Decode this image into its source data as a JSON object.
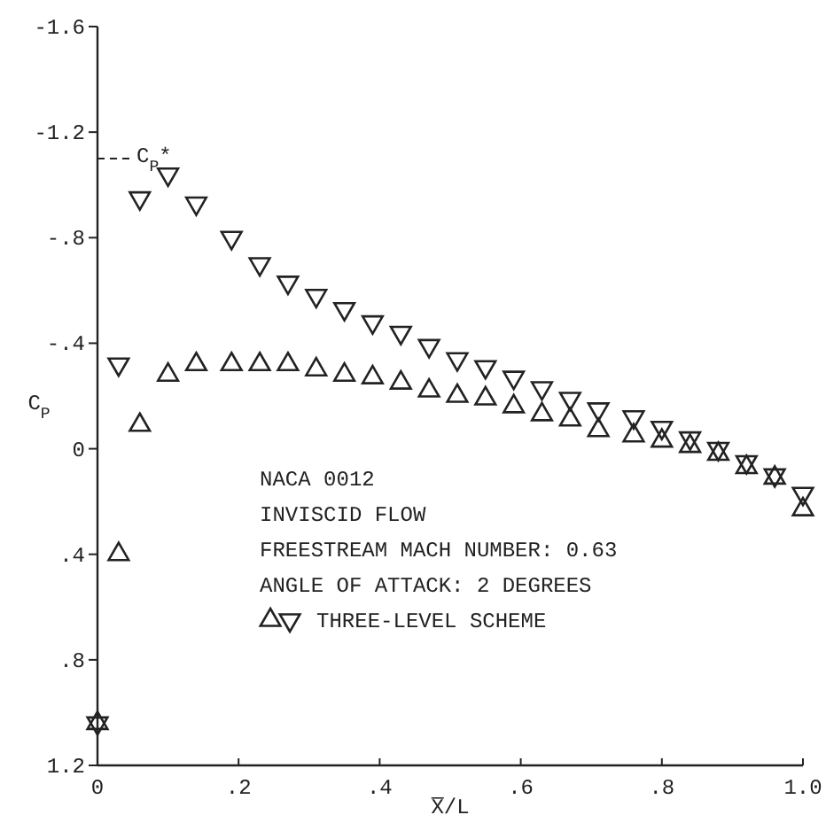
{
  "chart_data": {
    "type": "scatter",
    "xlabel": "X̅/L",
    "ylabel": "C$_{P}$",
    "xlim": [
      0,
      1.0
    ],
    "ylim": [
      1.2,
      -1.6
    ],
    "xticks": [
      0,
      {
        "value": 0.2,
        "label": ".2"
      },
      {
        "value": 0.4,
        "label": ".4"
      },
      {
        "value": 0.6,
        "label": ".6"
      },
      {
        "value": 0.8,
        "label": ".8"
      },
      {
        "value": 1.0,
        "label": "1.0"
      }
    ],
    "yticks": [
      -1.6,
      -1.2,
      {
        "value": -0.8,
        "label": "-.8"
      },
      {
        "value": -0.4,
        "label": "-.4"
      },
      0,
      {
        "value": 0.4,
        "label": ".4"
      },
      {
        "value": 0.8,
        "label": ".8"
      },
      1.2
    ],
    "grid": false,
    "legend": "bottom left",
    "series": [
      {
        "name": "THREE-LEVEL SCHEME",
        "color": "#222222",
        "marker": "triangle",
        "x": [
          0,
          0.03,
          0.06,
          0.1,
          0.14,
          0.19,
          0.23,
          0.27,
          0.31,
          0.35,
          0.39,
          0.43,
          0.47,
          0.51,
          0.55,
          0.59,
          0.63,
          0.67,
          0.71,
          0.76,
          0.8,
          0.84,
          0.88,
          0.92,
          0.96,
          1.0
        ],
        "values": [
          1.04,
          0.4,
          -0.09,
          -0.28,
          -0.32,
          -0.32,
          -0.32,
          -0.32,
          -0.3,
          -0.28,
          -0.27,
          -0.25,
          -0.22,
          -0.2,
          -0.19,
          -0.16,
          -0.13,
          -0.11,
          -0.07,
          -0.05,
          -0.03,
          -0.01,
          0.02,
          0.07,
          0.11,
          0.23
        ]
      },
      {
        "color": "#222222",
        "marker": "triangle-down",
        "x": [
          0,
          0.03,
          0.06,
          0.1,
          0.14,
          0.19,
          0.23,
          0.27,
          0.31,
          0.35,
          0.39,
          0.43,
          0.47,
          0.51,
          0.55,
          0.59,
          0.63,
          0.67,
          0.71,
          0.76,
          0.8,
          0.84,
          0.88,
          0.92,
          0.96,
          1.0
        ],
        "values": [
          1.04,
          -0.32,
          -0.95,
          -1.04,
          -0.93,
          -0.8,
          -0.7,
          -0.63,
          -0.58,
          -0.53,
          -0.48,
          -0.44,
          -0.39,
          -0.34,
          -0.31,
          -0.27,
          -0.23,
          -0.19,
          -0.15,
          -0.12,
          -0.08,
          -0.04,
          0.0,
          0.05,
          0.1,
          0.17
        ]
      }
    ],
    "ref_lines": [
      {
        "axis": "y",
        "value": -1.1,
        "label": "C$_{P}$*",
        "line_style": "dashed",
        "color": "#222222"
      }
    ],
    "annotations": [
      "NACA 0012",
      "INVISCID FLOW",
      "FREESTREAM MACH NUMBER: 0.63",
      "ANGLE OF ATTACK: 2 DEGREES"
    ]
  }
}
